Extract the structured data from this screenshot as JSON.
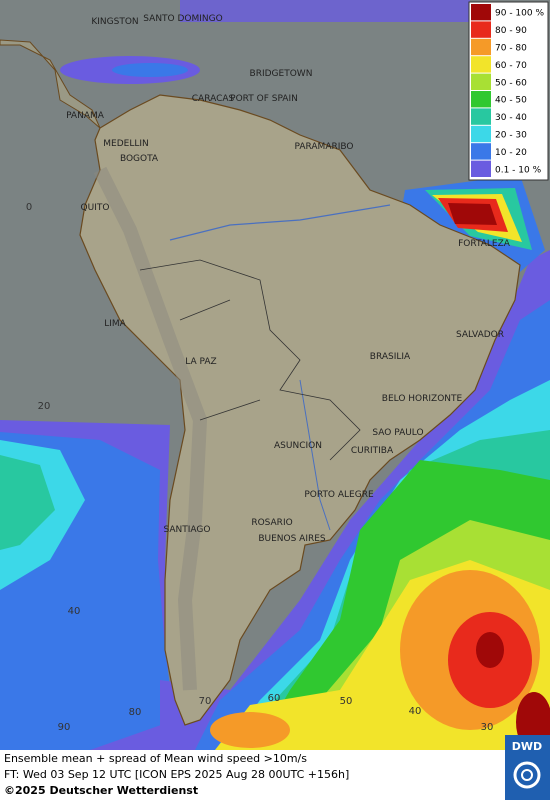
{
  "legend": [
    {
      "label": "90 - 100 %",
      "color": "#a00808"
    },
    {
      "label": "80 - 90",
      "color": "#e82a1c"
    },
    {
      "label": "70 - 80",
      "color": "#f59a28"
    },
    {
      "label": "60 - 70",
      "color": "#f2e42a"
    },
    {
      "label": "50 - 60",
      "color": "#a8e034"
    },
    {
      "label": "40 - 50",
      "color": "#30c830"
    },
    {
      "label": "30 - 40",
      "color": "#28c8a0"
    },
    {
      "label": "20 - 30",
      "color": "#3cd8e8"
    },
    {
      "label": "10 - 20",
      "color": "#3a78e8"
    },
    {
      "label": "0.1 - 10 %",
      "color": "#6a5ce0"
    }
  ],
  "cities": [
    "KINGSTON",
    "SANTO DOMINGO",
    "BRIDGETOWN",
    "PANAMA",
    "CARACAS",
    "PORT OF SPAIN",
    "MEDELLIN",
    "BOGOTA",
    "PARAMARIBO",
    "QUITO",
    "FORTALEZA",
    "LIMA",
    "SALVADOR",
    "BRASILIA",
    "LA PAZ",
    "BELO HORIZONTE",
    "SAO PAULO",
    "ASUNCION",
    "CURITIBA",
    "PORTO ALEGRE",
    "SANTIAGO",
    "ROSARIO",
    "BUENOS AIRES"
  ],
  "graticule_labels": [
    0,
    20,
    40,
    60,
    50,
    40,
    30,
    70,
    80,
    90
  ],
  "footer": {
    "line1": "Ensemble mean + spread of Mean wind speed >10m/s",
    "line2": "FT: Wed 03 Sep 12 UTC [ICON EPS 2025 Aug 28 00UTC +156h]",
    "copyright": "©2025 Deutscher Wetterdienst",
    "logo": "DWD"
  }
}
